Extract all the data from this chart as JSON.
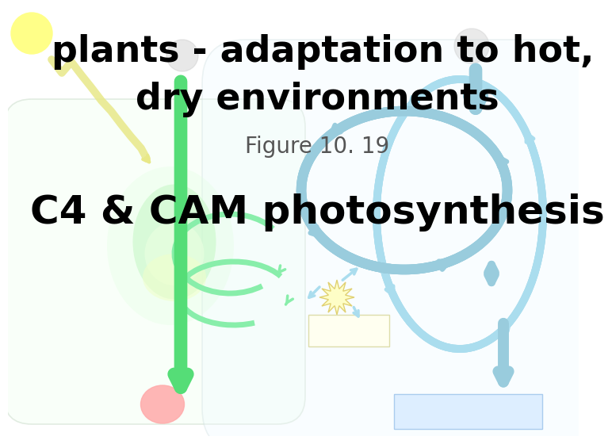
{
  "title_line1": "plants - adaptation to hot,",
  "title_line2": "dry environments",
  "subtitle": "Figure 10. 19",
  "main_label": "C4 & CAM photosynthesis",
  "bg_color": "#ffffff",
  "title_color": "#000000",
  "subtitle_color": "#555555",
  "main_label_color": "#000000",
  "sun_color": "#ffff88",
  "zigzag_color": "#e8e888",
  "green_arrow_color": "#55dd77",
  "green_arrow_light": "#88eeaa",
  "cell_outline_color": "#bbccbb",
  "blue_arrow_color": "#aaddee",
  "blue_arrow_thick": "#99ccdd",
  "pink_blob_color": "#ffaaaa",
  "light_green_blob_color": "#ccffcc",
  "light_yellow_blob_color": "#eeffdd",
  "light_yellow_box_color": "#fffff0",
  "light_blue_box_color": "#ddeeff",
  "star_color": "#ffffc0",
  "gray_circle_color": "#cccccc"
}
